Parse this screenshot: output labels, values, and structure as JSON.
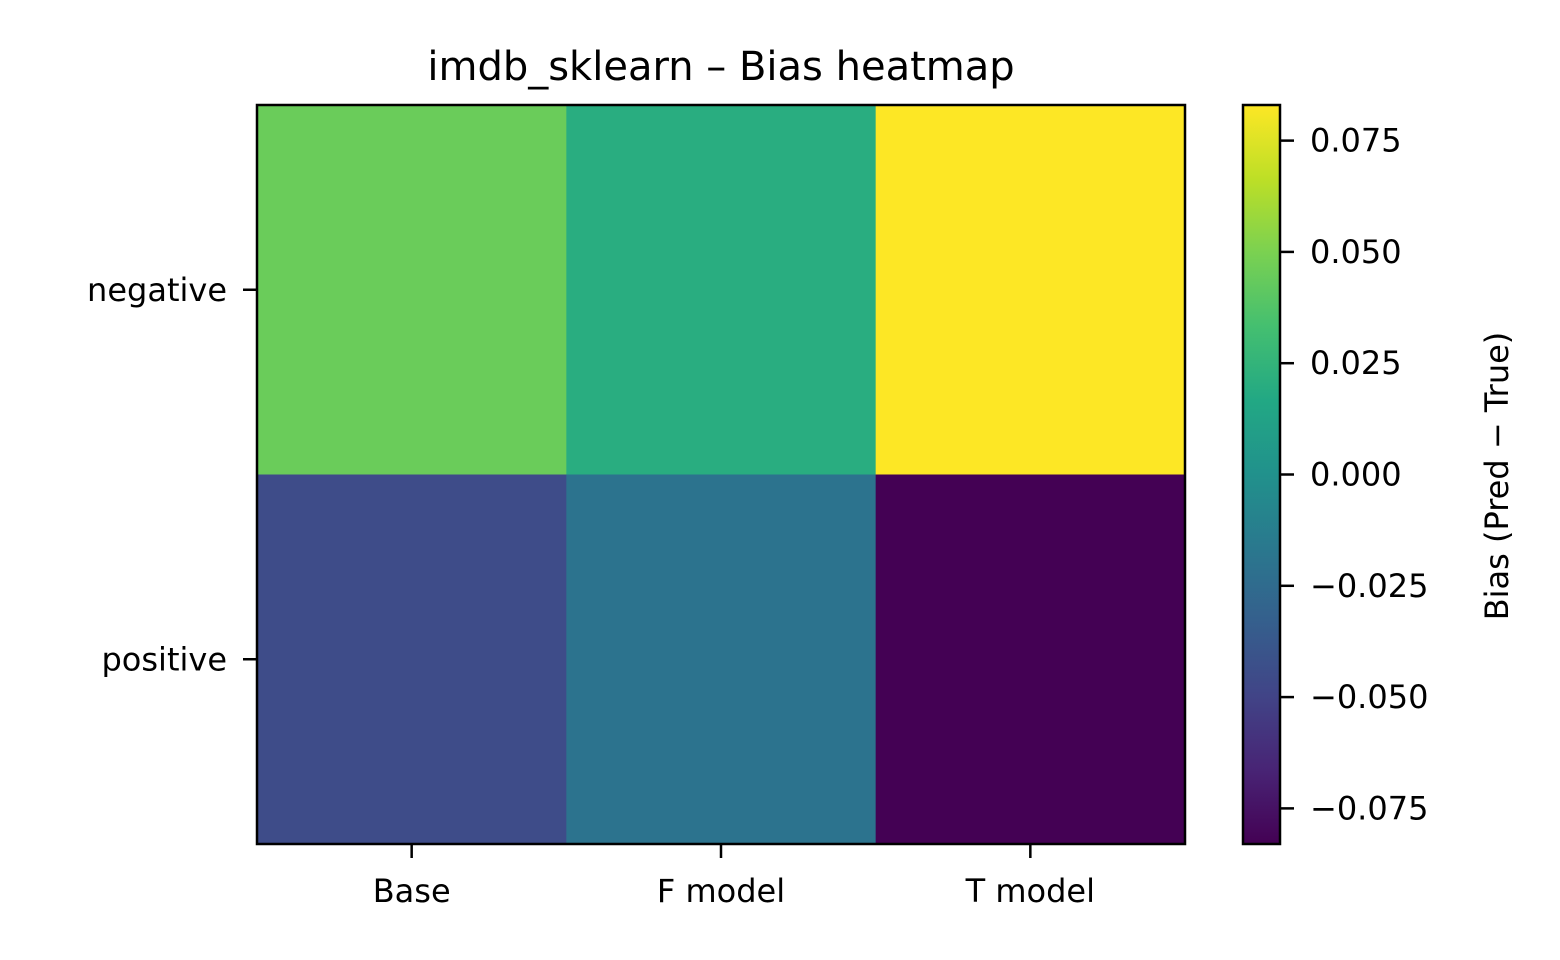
{
  "chart_data": {
    "type": "heatmap",
    "title": "imdb_sklearn – Bias heatmap",
    "x_categories": [
      "Base",
      "F model",
      "T model"
    ],
    "y_categories": [
      "negative",
      "positive"
    ],
    "values": [
      [
        0.045,
        0.02,
        0.083
      ],
      [
        -0.045,
        -0.02,
        -0.083
      ]
    ],
    "colormap": "viridis",
    "colorbar": {
      "label": "Bias (Pred − True)",
      "vmin": -0.083,
      "vmax": 0.083,
      "ticks": [
        0.075,
        0.05,
        0.025,
        0.0,
        -0.025,
        -0.05,
        -0.075
      ],
      "tick_labels": [
        "0.075",
        "0.050",
        "0.025",
        "0.000",
        "−0.025",
        "−0.050",
        "−0.075"
      ]
    }
  }
}
